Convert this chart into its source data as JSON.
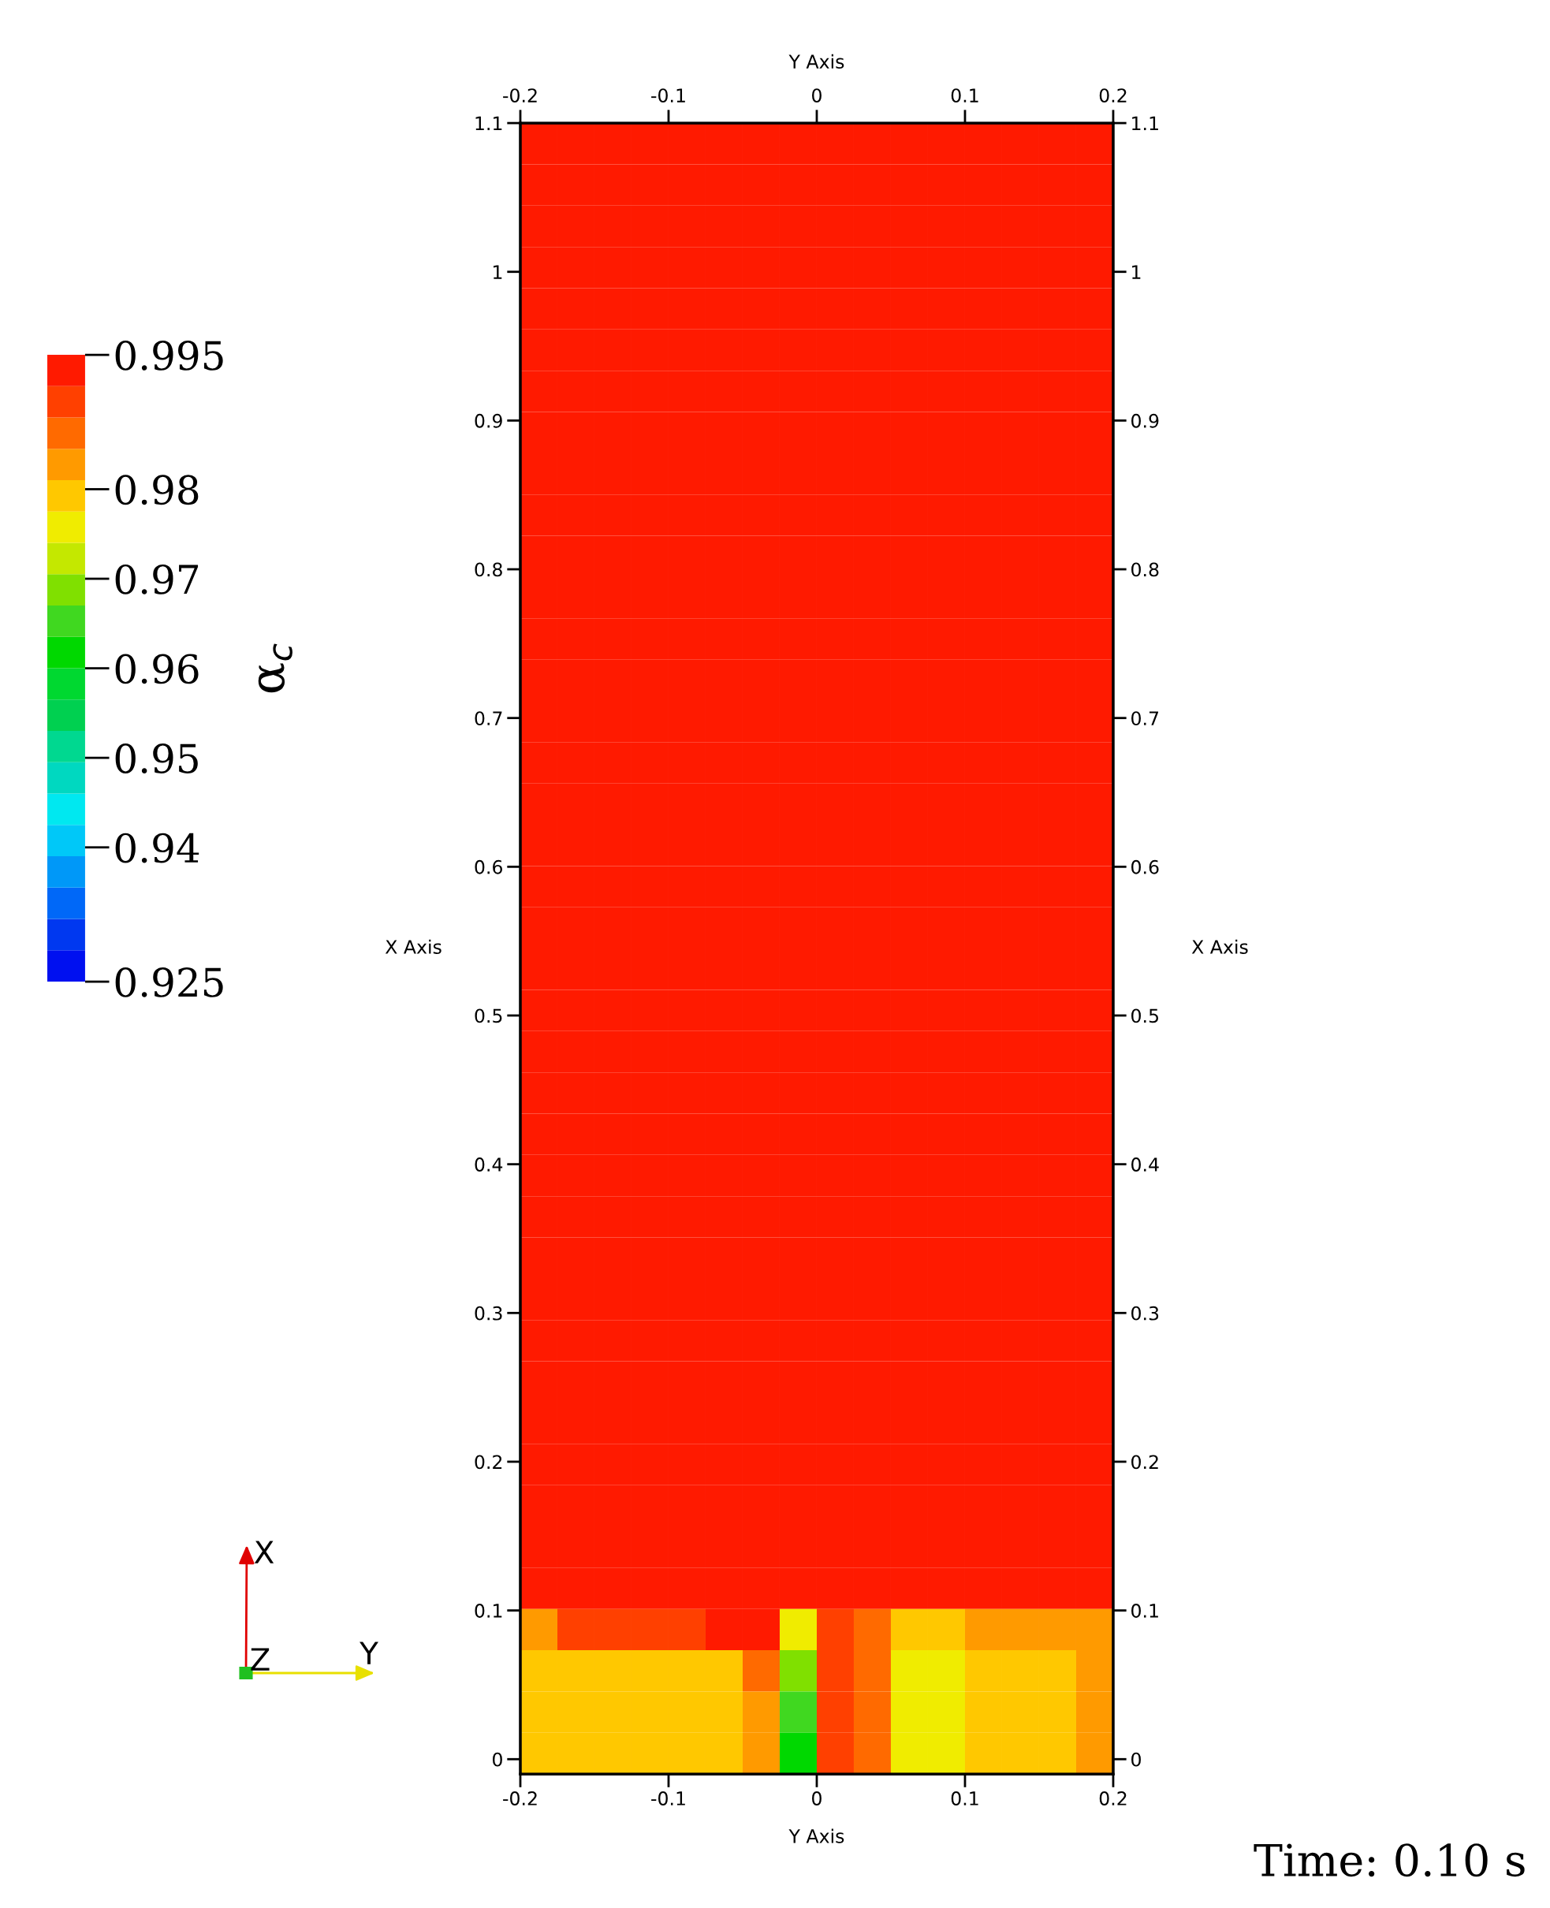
{
  "chart_data": {
    "type": "heatmap",
    "xlabel": "Y Axis",
    "x2label": "Y Axis",
    "ylabel": "X Axis",
    "y2label": "X Axis",
    "clabel": "α$_{c}$",
    "annotations": [
      "Time: 0.10 s",
      "X",
      "Y",
      "Z"
    ],
    "xlim": [
      -0.2,
      0.2
    ],
    "x2lim": [
      -0.2,
      0.2
    ],
    "ylim": [
      -0.01,
      1.1
    ],
    "y2lim": [
      -0.01,
      1.1
    ],
    "xticks": [
      -0.2,
      -0.1,
      0,
      0.1,
      0.2
    ],
    "x2ticks": [
      -0.2,
      -0.1,
      0,
      0.1,
      0.2
    ],
    "yticks": [
      0,
      0.1,
      0.2,
      0.3,
      0.4,
      0.5,
      0.6,
      0.7,
      0.8,
      0.9,
      1,
      1.1
    ],
    "y2ticks": [
      0,
      0.1,
      0.2,
      0.3,
      0.4,
      0.5,
      0.6,
      0.7,
      0.8,
      0.9,
      1,
      1.1
    ],
    "clim": [
      0.925,
      0.995
    ],
    "cticks": [
      0.925,
      0.94,
      0.95,
      0.96,
      0.97,
      0.98,
      0.995
    ],
    "cells": [
      [
        0.993,
        0.993,
        0.993,
        0.993,
        0.993,
        0.993,
        0.993,
        0.993,
        0.993,
        0.993,
        0.993,
        0.993,
        0.993,
        0.993,
        0.993,
        0.993
      ],
      [
        0.993,
        0.993,
        0.993,
        0.993,
        0.993,
        0.993,
        0.993,
        0.993,
        0.993,
        0.993,
        0.993,
        0.993,
        0.993,
        0.993,
        0.993,
        0.993
      ],
      [
        0.993,
        0.993,
        0.993,
        0.993,
        0.993,
        0.993,
        0.993,
        0.993,
        0.993,
        0.993,
        0.993,
        0.993,
        0.993,
        0.993,
        0.993,
        0.993
      ],
      [
        0.993,
        0.993,
        0.993,
        0.993,
        0.993,
        0.993,
        0.993,
        0.993,
        0.993,
        0.993,
        0.993,
        0.993,
        0.993,
        0.993,
        0.993,
        0.993
      ],
      [
        0.993,
        0.993,
        0.993,
        0.993,
        0.993,
        0.993,
        0.993,
        0.993,
        0.993,
        0.993,
        0.993,
        0.993,
        0.993,
        0.993,
        0.993,
        0.993
      ],
      [
        0.993,
        0.993,
        0.993,
        0.993,
        0.993,
        0.993,
        0.993,
        0.993,
        0.993,
        0.993,
        0.993,
        0.993,
        0.993,
        0.993,
        0.993,
        0.993
      ],
      [
        0.993,
        0.993,
        0.993,
        0.993,
        0.993,
        0.993,
        0.993,
        0.993,
        0.993,
        0.993,
        0.993,
        0.993,
        0.993,
        0.993,
        0.993,
        0.993
      ],
      [
        0.993,
        0.993,
        0.993,
        0.993,
        0.993,
        0.993,
        0.993,
        0.993,
        0.993,
        0.993,
        0.993,
        0.993,
        0.993,
        0.993,
        0.993,
        0.993
      ],
      [
        0.993,
        0.993,
        0.993,
        0.993,
        0.993,
        0.993,
        0.993,
        0.993,
        0.993,
        0.993,
        0.993,
        0.993,
        0.993,
        0.993,
        0.993,
        0.993
      ],
      [
        0.993,
        0.993,
        0.993,
        0.993,
        0.993,
        0.993,
        0.993,
        0.993,
        0.993,
        0.993,
        0.993,
        0.993,
        0.993,
        0.993,
        0.993,
        0.993
      ],
      [
        0.993,
        0.993,
        0.993,
        0.993,
        0.993,
        0.993,
        0.993,
        0.993,
        0.993,
        0.993,
        0.993,
        0.993,
        0.993,
        0.993,
        0.993,
        0.993
      ],
      [
        0.993,
        0.993,
        0.993,
        0.993,
        0.993,
        0.993,
        0.993,
        0.993,
        0.993,
        0.993,
        0.993,
        0.993,
        0.993,
        0.993,
        0.993,
        0.993
      ],
      [
        0.993,
        0.993,
        0.993,
        0.993,
        0.993,
        0.993,
        0.993,
        0.993,
        0.993,
        0.993,
        0.993,
        0.993,
        0.993,
        0.993,
        0.993,
        0.993
      ],
      [
        0.993,
        0.993,
        0.993,
        0.993,
        0.993,
        0.993,
        0.993,
        0.993,
        0.993,
        0.993,
        0.993,
        0.993,
        0.993,
        0.993,
        0.993,
        0.993
      ],
      [
        0.993,
        0.993,
        0.993,
        0.993,
        0.993,
        0.993,
        0.993,
        0.993,
        0.993,
        0.993,
        0.993,
        0.993,
        0.993,
        0.993,
        0.993,
        0.993
      ],
      [
        0.993,
        0.993,
        0.993,
        0.993,
        0.993,
        0.993,
        0.993,
        0.993,
        0.993,
        0.993,
        0.993,
        0.993,
        0.993,
        0.993,
        0.993,
        0.993
      ],
      [
        0.993,
        0.993,
        0.993,
        0.993,
        0.993,
        0.993,
        0.993,
        0.993,
        0.993,
        0.993,
        0.993,
        0.993,
        0.993,
        0.993,
        0.993,
        0.993
      ],
      [
        0.993,
        0.993,
        0.993,
        0.993,
        0.993,
        0.993,
        0.993,
        0.993,
        0.993,
        0.993,
        0.993,
        0.993,
        0.993,
        0.993,
        0.993,
        0.993
      ],
      [
        0.993,
        0.993,
        0.993,
        0.993,
        0.993,
        0.993,
        0.993,
        0.993,
        0.993,
        0.993,
        0.993,
        0.993,
        0.993,
        0.993,
        0.993,
        0.993
      ],
      [
        0.993,
        0.993,
        0.993,
        0.993,
        0.993,
        0.993,
        0.993,
        0.993,
        0.993,
        0.993,
        0.993,
        0.993,
        0.993,
        0.993,
        0.993,
        0.993
      ],
      [
        0.993,
        0.993,
        0.993,
        0.993,
        0.993,
        0.993,
        0.993,
        0.993,
        0.993,
        0.993,
        0.993,
        0.993,
        0.993,
        0.993,
        0.993,
        0.993
      ],
      [
        0.993,
        0.993,
        0.993,
        0.993,
        0.993,
        0.993,
        0.993,
        0.993,
        0.993,
        0.993,
        0.993,
        0.993,
        0.993,
        0.993,
        0.993,
        0.993
      ],
      [
        0.993,
        0.993,
        0.993,
        0.993,
        0.993,
        0.993,
        0.993,
        0.993,
        0.993,
        0.993,
        0.993,
        0.993,
        0.993,
        0.993,
        0.993,
        0.993
      ],
      [
        0.993,
        0.993,
        0.993,
        0.993,
        0.993,
        0.993,
        0.993,
        0.993,
        0.993,
        0.993,
        0.993,
        0.993,
        0.993,
        0.993,
        0.993,
        0.993
      ],
      [
        0.993,
        0.993,
        0.993,
        0.993,
        0.993,
        0.993,
        0.993,
        0.993,
        0.993,
        0.993,
        0.993,
        0.993,
        0.993,
        0.993,
        0.993,
        0.993
      ],
      [
        0.993,
        0.993,
        0.993,
        0.993,
        0.993,
        0.993,
        0.993,
        0.993,
        0.993,
        0.993,
        0.993,
        0.993,
        0.993,
        0.993,
        0.993,
        0.993
      ],
      [
        0.993,
        0.993,
        0.993,
        0.993,
        0.993,
        0.993,
        0.993,
        0.993,
        0.993,
        0.993,
        0.993,
        0.993,
        0.993,
        0.993,
        0.993,
        0.993
      ],
      [
        0.993,
        0.993,
        0.993,
        0.993,
        0.993,
        0.993,
        0.993,
        0.993,
        0.993,
        0.993,
        0.993,
        0.993,
        0.993,
        0.993,
        0.993,
        0.993
      ],
      [
        0.993,
        0.993,
        0.993,
        0.993,
        0.993,
        0.993,
        0.993,
        0.993,
        0.993,
        0.993,
        0.993,
        0.993,
        0.993,
        0.993,
        0.993,
        0.993
      ],
      [
        0.993,
        0.993,
        0.993,
        0.993,
        0.993,
        0.993,
        0.993,
        0.993,
        0.993,
        0.993,
        0.993,
        0.993,
        0.993,
        0.993,
        0.993,
        0.993
      ],
      [
        0.993,
        0.993,
        0.993,
        0.993,
        0.993,
        0.993,
        0.993,
        0.993,
        0.993,
        0.993,
        0.993,
        0.993,
        0.993,
        0.993,
        0.993,
        0.993
      ],
      [
        0.993,
        0.993,
        0.993,
        0.993,
        0.993,
        0.993,
        0.993,
        0.993,
        0.993,
        0.993,
        0.993,
        0.993,
        0.993,
        0.993,
        0.993,
        0.993
      ],
      [
        0.993,
        0.993,
        0.993,
        0.993,
        0.993,
        0.993,
        0.993,
        0.993,
        0.993,
        0.993,
        0.993,
        0.993,
        0.993,
        0.993,
        0.993,
        0.993
      ],
      [
        0.993,
        0.993,
        0.993,
        0.993,
        0.993,
        0.993,
        0.993,
        0.993,
        0.993,
        0.993,
        0.993,
        0.993,
        0.993,
        0.993,
        0.993,
        0.993
      ],
      [
        0.993,
        0.993,
        0.993,
        0.993,
        0.993,
        0.993,
        0.993,
        0.993,
        0.993,
        0.993,
        0.993,
        0.993,
        0.993,
        0.993,
        0.993,
        0.993
      ],
      [
        0.993,
        0.993,
        0.993,
        0.993,
        0.993,
        0.993,
        0.993,
        0.993,
        0.993,
        0.993,
        0.993,
        0.993,
        0.993,
        0.993,
        0.993,
        0.993
      ],
      [
        0.984,
        0.99,
        0.99,
        0.991,
        0.991,
        0.993,
        0.993,
        0.975,
        0.989,
        0.987,
        0.98,
        0.98,
        0.981,
        0.981,
        0.982,
        0.984
      ],
      [
        0.979,
        0.979,
        0.979,
        0.979,
        0.979,
        0.979,
        0.985,
        0.968,
        0.988,
        0.986,
        0.977,
        0.977,
        0.979,
        0.979,
        0.98,
        0.983
      ],
      [
        0.978,
        0.979,
        0.979,
        0.979,
        0.979,
        0.979,
        0.983,
        0.965,
        0.988,
        0.986,
        0.977,
        0.977,
        0.979,
        0.979,
        0.98,
        0.983
      ],
      [
        0.978,
        0.979,
        0.979,
        0.979,
        0.979,
        0.979,
        0.983,
        0.962,
        0.988,
        0.986,
        0.977,
        0.977,
        0.979,
        0.979,
        0.98,
        0.983
      ]
    ]
  }
}
